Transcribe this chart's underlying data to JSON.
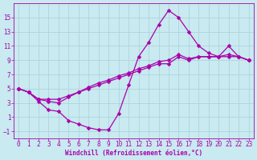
{
  "xlabel": "Windchill (Refroidissement éolien,°C)",
  "background_color": "#c8eaf0",
  "grid_color": "#aed4dc",
  "line_color": "#aa00aa",
  "xlim": [
    -0.5,
    23.5
  ],
  "ylim": [
    -2,
    17
  ],
  "xticks": [
    0,
    1,
    2,
    3,
    4,
    5,
    6,
    7,
    8,
    9,
    10,
    11,
    12,
    13,
    14,
    15,
    16,
    17,
    18,
    19,
    20,
    21,
    22,
    23
  ],
  "yticks": [
    -1,
    1,
    3,
    5,
    7,
    9,
    11,
    13,
    15
  ],
  "line1_x": [
    0,
    1,
    2,
    3,
    4,
    5,
    6,
    7,
    8,
    9,
    10,
    11,
    12,
    13,
    14,
    15,
    16,
    17,
    18,
    19,
    20,
    21,
    22,
    23
  ],
  "line1_y": [
    5.0,
    4.5,
    3.5,
    3.5,
    3.5,
    4.0,
    4.5,
    5.0,
    5.5,
    6.0,
    6.5,
    7.0,
    7.5,
    8.0,
    8.5,
    8.5,
    9.5,
    9.0,
    9.5,
    9.5,
    9.5,
    9.5,
    9.5,
    9.0
  ],
  "line2_x": [
    0,
    1,
    2,
    3,
    4,
    5,
    6,
    7,
    8,
    9,
    10,
    11,
    12,
    13,
    14,
    15,
    16,
    17,
    18,
    19,
    20,
    21,
    22,
    23
  ],
  "line2_y": [
    5.0,
    4.5,
    3.5,
    3.2,
    3.0,
    3.8,
    4.5,
    5.2,
    5.8,
    6.2,
    6.8,
    7.2,
    7.8,
    8.2,
    8.8,
    9.0,
    9.8,
    9.2,
    9.5,
    9.5,
    9.5,
    9.8,
    9.5,
    9.0
  ],
  "line3_x": [
    0,
    1,
    2,
    3,
    4,
    5,
    6,
    7,
    8,
    9,
    10,
    11,
    12,
    13,
    14,
    15,
    16,
    17,
    18,
    19,
    20,
    21,
    22,
    23
  ],
  "line3_y": [
    5.0,
    4.5,
    3.2,
    2.0,
    1.8,
    0.5,
    0.0,
    -0.5,
    -0.8,
    -0.8,
    1.5,
    5.5,
    9.5,
    11.5,
    14.0,
    16.0,
    15.0,
    13.0,
    11.0,
    10.0,
    9.5,
    11.0,
    9.5,
    9.0
  ]
}
